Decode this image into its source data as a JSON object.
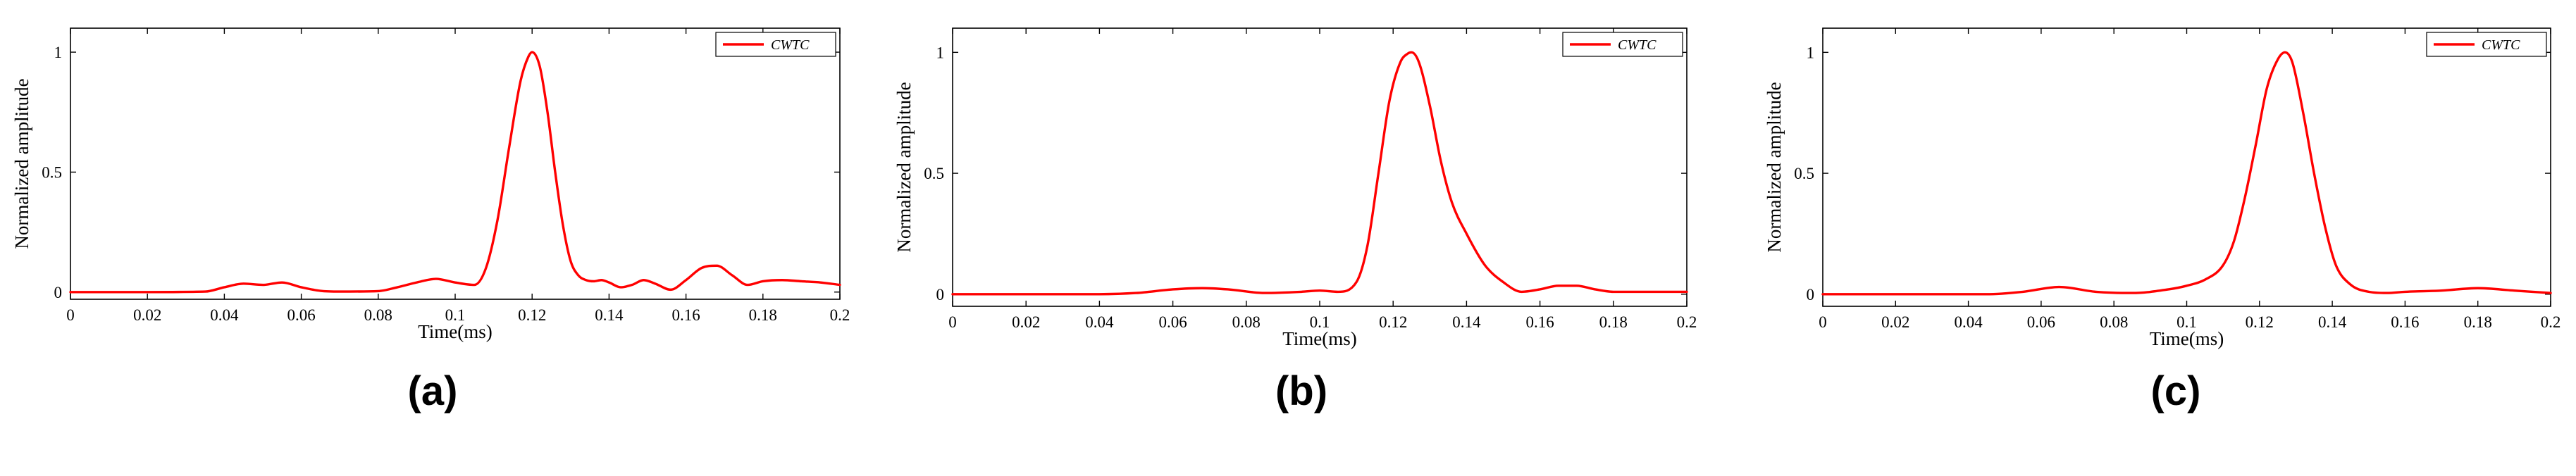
{
  "chart_data": [
    {
      "panel_label": "(a)",
      "type": "line",
      "title": "",
      "xlabel": "Time(ms)",
      "ylabel": "Normalized amplitude",
      "xlim": [
        0,
        0.2
      ],
      "ylim": [
        -0.03,
        1.1
      ],
      "xticks": [
        0,
        0.02,
        0.04,
        0.06,
        0.08,
        0.1,
        0.12,
        0.14,
        0.16,
        0.18,
        0.2
      ],
      "xtick_labels": [
        "0",
        "0.02",
        "0.04",
        "0.06",
        "0.08",
        "0.1",
        "0.12",
        "0.14",
        "0.16",
        "0.18",
        "0.2"
      ],
      "yticks": [
        0,
        0.5,
        1
      ],
      "ytick_labels": [
        "0",
        "0.5",
        "1"
      ],
      "grid": false,
      "legend_position": "top-right",
      "series": [
        {
          "name": "CWTC",
          "color": "#ff0000",
          "x": [
            0,
            0.02,
            0.035,
            0.04,
            0.045,
            0.05,
            0.055,
            0.06,
            0.065,
            0.07,
            0.08,
            0.085,
            0.09,
            0.095,
            0.1,
            0.105,
            0.108,
            0.111,
            0.114,
            0.117,
            0.119,
            0.12,
            0.122,
            0.124,
            0.126,
            0.128,
            0.13,
            0.132,
            0.134,
            0.136,
            0.138,
            0.14,
            0.143,
            0.146,
            0.149,
            0.152,
            0.156,
            0.16,
            0.164,
            0.168,
            0.172,
            0.176,
            0.18,
            0.185,
            0.19,
            0.195,
            0.2
          ],
          "y": [
            0,
            0,
            0.002,
            0.02,
            0.035,
            0.03,
            0.04,
            0.02,
            0.005,
            0.002,
            0.004,
            0.02,
            0.04,
            0.055,
            0.04,
            0.03,
            0.1,
            0.3,
            0.6,
            0.88,
            0.98,
            1.0,
            0.94,
            0.75,
            0.5,
            0.28,
            0.13,
            0.07,
            0.05,
            0.045,
            0.05,
            0.04,
            0.02,
            0.03,
            0.05,
            0.035,
            0.01,
            0.05,
            0.1,
            0.11,
            0.07,
            0.03,
            0.045,
            0.05,
            0.045,
            0.04,
            0.03
          ]
        }
      ]
    },
    {
      "panel_label": "(b)",
      "type": "line",
      "title": "",
      "xlabel": "Time(ms)",
      "ylabel": "Normalized amplitude",
      "xlim": [
        0,
        0.2
      ],
      "ylim": [
        -0.05,
        1.1
      ],
      "xticks": [
        0,
        0.02,
        0.04,
        0.06,
        0.08,
        0.1,
        0.12,
        0.14,
        0.16,
        0.18,
        0.2
      ],
      "xtick_labels": [
        "0",
        "0.02",
        "0.04",
        "0.06",
        "0.08",
        "0.1",
        "0.12",
        "0.14",
        "0.16",
        "0.18",
        "0.2"
      ],
      "yticks": [
        0,
        0.5,
        1
      ],
      "ytick_labels": [
        "0",
        "0.5",
        "1"
      ],
      "grid": false,
      "legend_position": "top-right",
      "series": [
        {
          "name": "CWTC",
          "color": "#ff0000",
          "x": [
            0,
            0.04,
            0.05,
            0.06,
            0.068,
            0.075,
            0.085,
            0.095,
            0.1,
            0.105,
            0.11,
            0.113,
            0.116,
            0.119,
            0.122,
            0.124,
            0.125,
            0.127,
            0.13,
            0.133,
            0.136,
            0.14,
            0.145,
            0.15,
            0.155,
            0.16,
            0.165,
            0.17,
            0.175,
            0.18,
            0.19,
            0.2
          ],
          "y": [
            0,
            0,
            0.005,
            0.02,
            0.025,
            0.02,
            0.005,
            0.01,
            0.015,
            0.01,
            0.05,
            0.2,
            0.5,
            0.8,
            0.96,
            0.995,
            1.0,
            0.96,
            0.78,
            0.55,
            0.38,
            0.25,
            0.12,
            0.05,
            0.01,
            0.02,
            0.035,
            0.035,
            0.02,
            0.01,
            0.01,
            0.01
          ]
        }
      ]
    },
    {
      "panel_label": "(c)",
      "type": "line",
      "title": "",
      "xlabel": "Time(ms)",
      "ylabel": "Normalized amplitude",
      "xlim": [
        0,
        0.2
      ],
      "ylim": [
        -0.05,
        1.1
      ],
      "xticks": [
        0,
        0.02,
        0.04,
        0.06,
        0.08,
        0.1,
        0.12,
        0.14,
        0.16,
        0.18,
        0.2
      ],
      "xtick_labels": [
        "0",
        "0.02",
        "0.04",
        "0.06",
        "0.08",
        "0.1",
        "0.12",
        "0.14",
        "0.16",
        "0.18",
        "0.2"
      ],
      "yticks": [
        0,
        0.5,
        1
      ],
      "ytick_labels": [
        "0",
        "0.5",
        "1"
      ],
      "grid": false,
      "legend_position": "top-right",
      "series": [
        {
          "name": "CWTC",
          "color": "#ff0000",
          "x": [
            0,
            0.045,
            0.055,
            0.065,
            0.075,
            0.085,
            0.095,
            0.1,
            0.105,
            0.11,
            0.113,
            0.116,
            0.119,
            0.122,
            0.125,
            0.127,
            0.129,
            0.132,
            0.135,
            0.138,
            0.141,
            0.145,
            0.15,
            0.155,
            0.16,
            0.17,
            0.18,
            0.19,
            0.2
          ],
          "y": [
            0,
            0,
            0.01,
            0.03,
            0.01,
            0.005,
            0.02,
            0.035,
            0.06,
            0.12,
            0.22,
            0.4,
            0.62,
            0.85,
            0.97,
            1.0,
            0.96,
            0.75,
            0.5,
            0.28,
            0.12,
            0.04,
            0.01,
            0.005,
            0.01,
            0.015,
            0.025,
            0.015,
            0.005
          ]
        }
      ]
    }
  ]
}
